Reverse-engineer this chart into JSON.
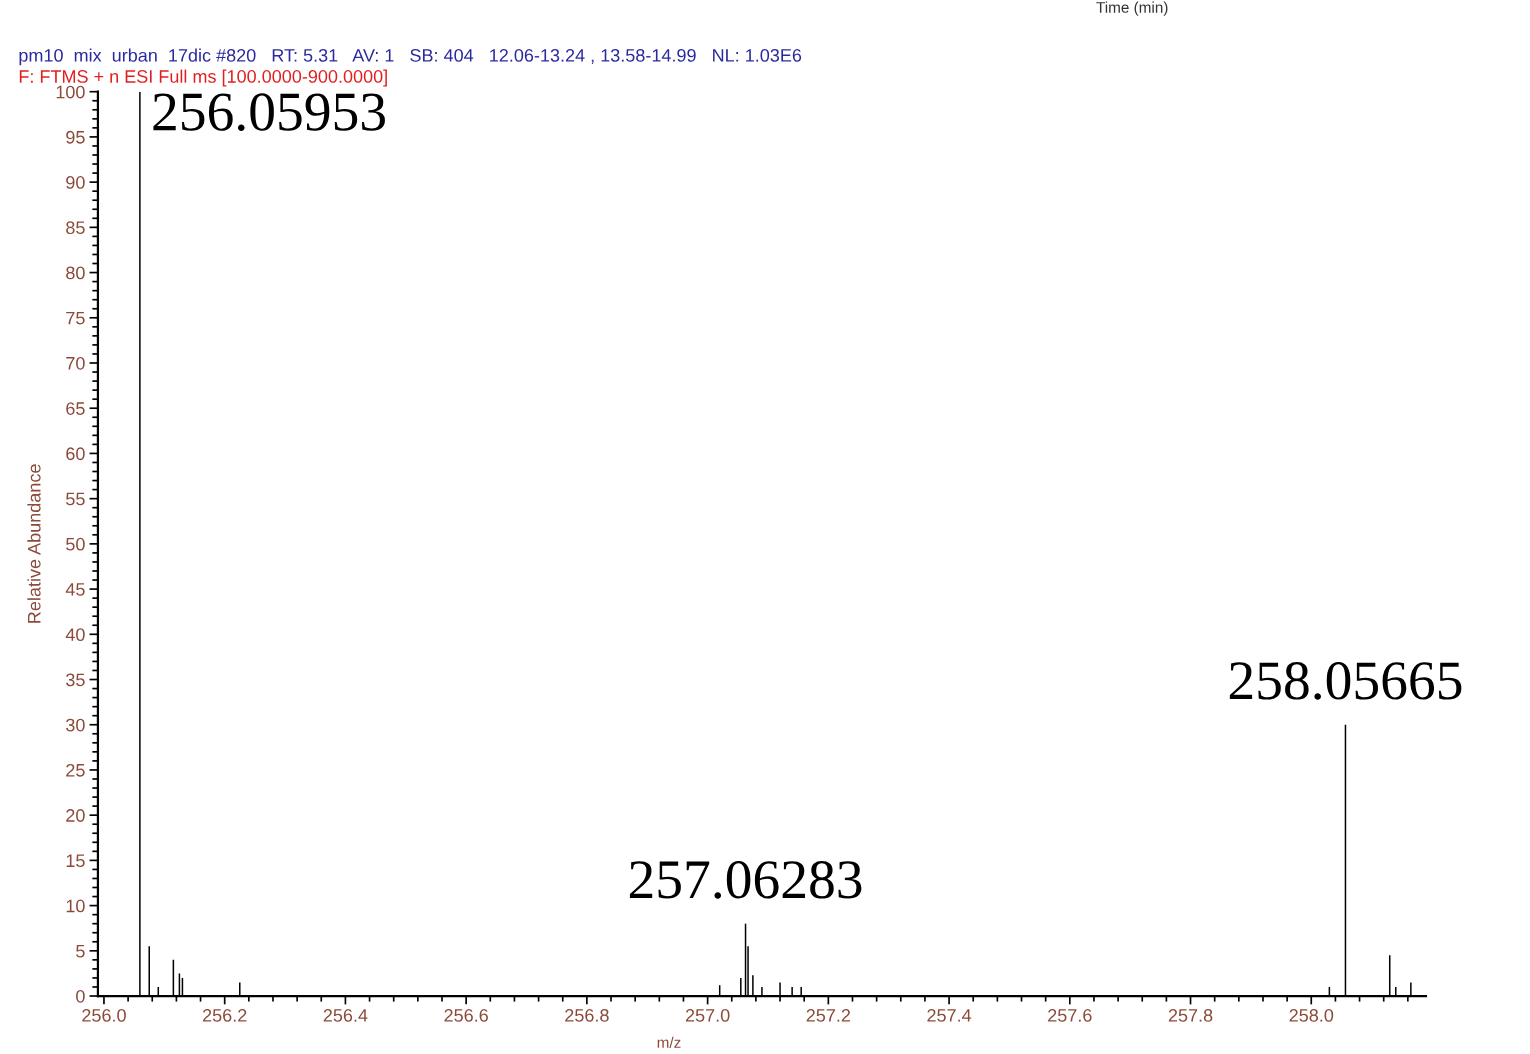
{
  "chart_data": {
    "type": "bar",
    "title": "pm10  mix  urban  17dic #820   RT: 5.31   AV: 1   SB: 404   12.06-13.24 , 13.58-14.99   NL: 1.03E6",
    "subtitle": "F: FTMS + n ESI Full ms [100.0000-900.0000]",
    "xlabel": "m/z",
    "ylabel": "Relative Abundance",
    "x": [
      256.05953,
      256.075,
      256.09,
      256.115,
      256.125,
      256.13,
      256.225,
      257.02,
      257.055,
      257.06283,
      257.067,
      257.075,
      257.09,
      257.12,
      257.14,
      257.155,
      258.03,
      258.05665,
      258.13,
      258.14,
      258.165
    ],
    "values": [
      100,
      5.5,
      1,
      4,
      2.5,
      2,
      1.5,
      1.2,
      2,
      8,
      5.5,
      2.3,
      1,
      1.5,
      1,
      1,
      1,
      30,
      4.5,
      1,
      1.5
    ],
    "color": "#000000",
    "xlim": [
      255.99,
      258.19
    ],
    "ylim": [
      0,
      100
    ],
    "xticks": [
      {
        "value": 256.0,
        "label": "256.0"
      },
      256.2,
      256.4,
      256.6,
      256.8,
      {
        "value": 257.0,
        "label": "257.0"
      },
      257.2,
      257.4,
      257.6,
      257.8,
      {
        "value": 258.0,
        "label": "258.0"
      }
    ],
    "yticks": [
      0,
      5,
      10,
      15,
      20,
      25,
      30,
      35,
      40,
      45,
      50,
      55,
      60,
      65,
      70,
      75,
      80,
      85,
      90,
      95,
      100
    ],
    "grid": false,
    "legend": false,
    "annotations": [
      {
        "text": "256.05953",
        "x": 256.05953,
        "y": 100
      },
      {
        "text": "257.06283",
        "x": 257.06283,
        "y": 8
      },
      {
        "text": "258.05665",
        "x": 258.05665,
        "y": 30
      },
      "Time (min)"
    ]
  }
}
